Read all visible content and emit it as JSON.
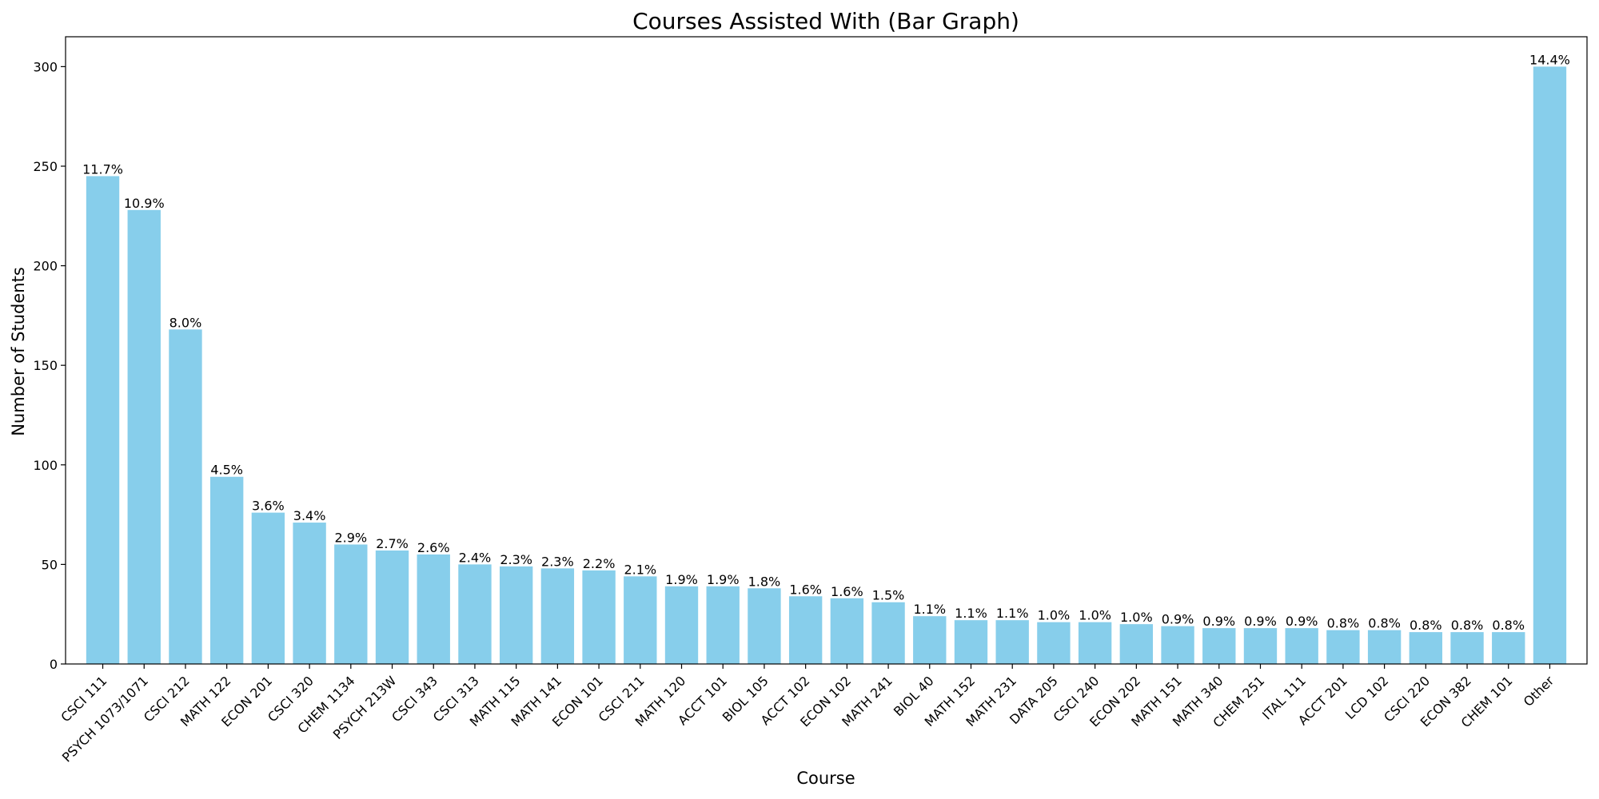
{
  "chart_data": {
    "type": "bar",
    "title": "Courses Assisted With (Bar Graph)",
    "xlabel": "Course",
    "ylabel": "Number of Students",
    "ylim": [
      0,
      315
    ],
    "yticks": [
      0,
      50,
      100,
      150,
      200,
      250,
      300
    ],
    "grid": false,
    "bar_color": "#87CEEB",
    "categories": [
      "CSCI 111",
      "PSYCH 1073/1071",
      "CSCI 212",
      "MATH 122",
      "ECON 201",
      "CSCI 320",
      "CHEM 1134",
      "PSYCH 213W",
      "CSCI 343",
      "CSCI 313",
      "MATH 115",
      "MATH 141",
      "ECON 101",
      "CSCI 211",
      "MATH 120",
      "ACCT 101",
      "BIOL 105",
      "ACCT 102",
      "ECON 102",
      "MATH  241",
      "BIOL 40",
      "MATH 152",
      "MATH 231",
      "DATA 205",
      "CSCI 240",
      "ECON 202",
      "MATH 151",
      "MATH 340",
      "CHEM 251",
      "ITAL 111",
      "ACCT 201",
      "LCD 102",
      "CSCI 220",
      "ECON 382",
      "CHEM 101",
      "Other"
    ],
    "values": [
      245,
      228,
      168,
      94,
      76,
      71,
      60,
      57,
      55,
      50,
      49,
      48,
      47,
      44,
      39,
      39,
      38,
      34,
      33,
      31,
      24,
      22,
      22,
      21,
      21,
      20,
      19,
      18,
      18,
      18,
      17,
      17,
      16,
      16,
      16,
      300
    ],
    "labels": [
      "11.7%",
      "10.9%",
      "8.0%",
      "4.5%",
      "3.6%",
      "3.4%",
      "2.9%",
      "2.7%",
      "2.6%",
      "2.4%",
      "2.3%",
      "2.3%",
      "2.2%",
      "2.1%",
      "1.9%",
      "1.9%",
      "1.8%",
      "1.6%",
      "1.6%",
      "1.5%",
      "1.1%",
      "1.1%",
      "1.1%",
      "1.0%",
      "1.0%",
      "1.0%",
      "0.9%",
      "0.9%",
      "0.9%",
      "0.9%",
      "0.8%",
      "0.8%",
      "0.8%",
      "0.8%",
      "0.8%",
      "14.4%"
    ]
  }
}
